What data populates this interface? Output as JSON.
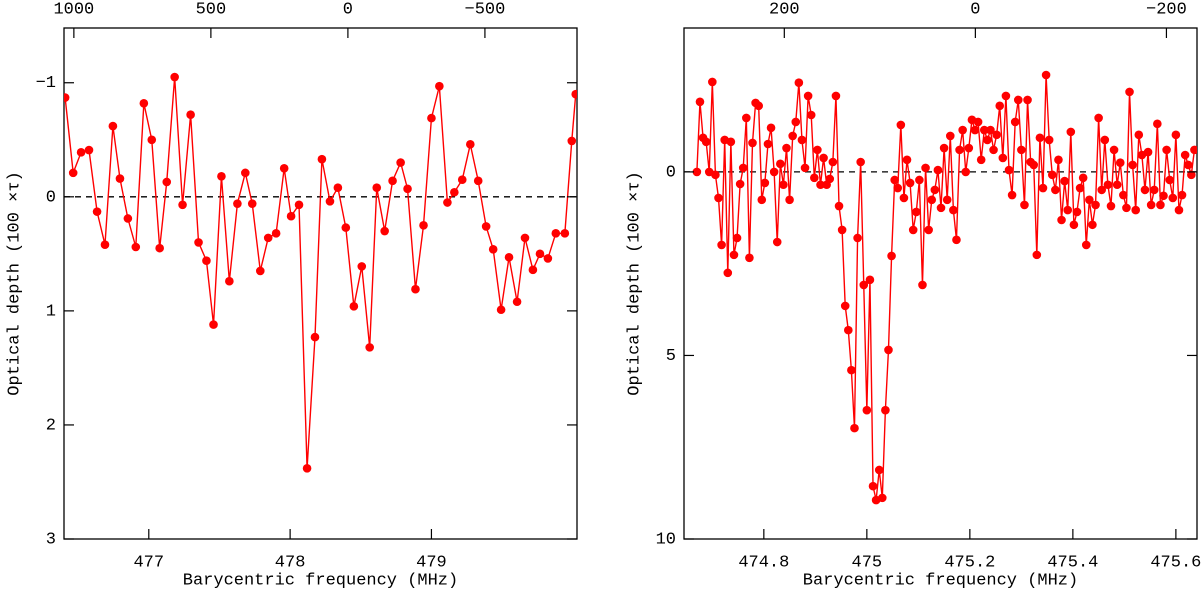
{
  "chart_data": [
    {
      "type": "line",
      "marker": "circle",
      "color": "#ff0000",
      "xlabel": "Barycentric frequency (MHz)",
      "ylabel": "Optical depth (100 ×τ)",
      "xlim": [
        476.4,
        480.03
      ],
      "xticks": [
        477,
        478,
        479
      ],
      "x2lim": [
        1036,
        -836
      ],
      "x2ticks": [
        1000,
        500,
        0,
        {
          "value": -500,
          "label": "−500"
        }
      ],
      "ylim": [
        -1.48,
        3
      ],
      "y_inverted": true,
      "yticks": [
        {
          "value": -1,
          "label": "−1"
        },
        0,
        1,
        2,
        3
      ],
      "hline": 0,
      "x": [
        476.408,
        476.465,
        476.521,
        476.577,
        476.634,
        476.69,
        476.746,
        476.796,
        476.852,
        476.908,
        476.965,
        477.021,
        477.077,
        477.127,
        477.183,
        477.239,
        477.296,
        477.352,
        477.408,
        477.458,
        477.514,
        477.57,
        477.627,
        477.683,
        477.732,
        477.789,
        477.845,
        477.901,
        477.958,
        478.007,
        478.063,
        478.12,
        478.176,
        478.225,
        478.282,
        478.338,
        478.394,
        478.451,
        478.507,
        478.563,
        478.613,
        478.669,
        478.725,
        478.782,
        478.831,
        478.887,
        478.944,
        479.0,
        479.056,
        479.113,
        479.162,
        479.218,
        479.275,
        479.331,
        479.387,
        479.437,
        479.493,
        479.549,
        479.606,
        479.662,
        479.718,
        479.768,
        479.824,
        479.88,
        479.944,
        479.993,
        480.021
      ],
      "values": [
        -0.87,
        -0.21,
        -0.39,
        -0.41,
        0.13,
        0.42,
        -0.62,
        -0.16,
        0.19,
        0.44,
        -0.82,
        -0.5,
        0.45,
        -0.13,
        -1.05,
        0.07,
        -0.72,
        0.4,
        0.56,
        1.12,
        -0.18,
        0.74,
        0.06,
        -0.21,
        0.06,
        0.65,
        0.36,
        0.32,
        -0.25,
        0.17,
        0.07,
        2.38,
        1.23,
        -0.33,
        0.04,
        -0.08,
        0.27,
        0.96,
        0.61,
        1.32,
        -0.08,
        0.3,
        -0.14,
        -0.3,
        -0.07,
        0.81,
        0.25,
        -0.69,
        -0.97,
        0.05,
        -0.04,
        -0.15,
        -0.46,
        -0.14,
        0.26,
        0.46,
        0.99,
        0.53,
        0.92,
        0.36,
        0.64,
        0.5,
        0.54,
        0.32,
        0.32,
        -0.49,
        -0.9
      ]
    },
    {
      "type": "line",
      "marker": "circle",
      "color": "#ff0000",
      "xlabel": "Barycentric frequency (MHz)",
      "ylabel": "Optical depth (100 ×τ)",
      "xlim": [
        474.645,
        475.641
      ],
      "xticks": [
        474.8,
        475,
        475.2,
        475.4,
        475.6
      ],
      "x2lim": [
        305,
        -232
      ],
      "x2ticks": [
        200,
        0,
        {
          "value": -200,
          "label": "−200"
        }
      ],
      "ylim": [
        -3.92,
        10
      ],
      "y_inverted": true,
      "yticks": [
        0,
        5,
        10
      ],
      "hline": 0,
      "x": [
        474.67,
        474.676,
        474.682,
        474.688,
        474.694,
        474.7,
        474.706,
        474.712,
        474.718,
        474.724,
        474.73,
        474.736,
        474.742,
        474.748,
        474.754,
        474.76,
        474.766,
        474.772,
        474.778,
        474.784,
        474.79,
        474.796,
        474.802,
        474.808,
        474.814,
        474.82,
        474.826,
        474.832,
        474.838,
        474.844,
        474.85,
        474.856,
        474.862,
        474.868,
        474.874,
        474.88,
        474.886,
        474.892,
        474.898,
        474.904,
        474.91,
        474.916,
        474.922,
        474.928,
        474.934,
        474.94,
        474.946,
        474.952,
        474.958,
        474.964,
        474.97,
        474.976,
        474.982,
        474.988,
        474.994,
        475.0,
        475.006,
        475.012,
        475.018,
        475.024,
        475.03,
        475.036,
        475.042,
        475.048,
        475.054,
        475.06,
        475.066,
        475.072,
        475.078,
        475.084,
        475.09,
        475.096,
        475.102,
        475.108,
        475.114,
        475.12,
        475.126,
        475.132,
        475.138,
        475.144,
        475.15,
        475.156,
        475.162,
        475.168,
        475.174,
        475.18,
        475.186,
        475.192,
        475.198,
        475.204,
        475.21,
        475.216,
        475.222,
        475.228,
        475.234,
        475.24,
        475.246,
        475.252,
        475.258,
        475.264,
        475.27,
        475.276,
        475.282,
        475.288,
        475.294,
        475.3,
        475.306,
        475.312,
        475.318,
        475.324,
        475.33,
        475.336,
        475.342,
        475.348,
        475.354,
        475.36,
        475.366,
        475.372,
        475.378,
        475.384,
        475.39,
        475.396,
        475.402,
        475.408,
        475.414,
        475.42,
        475.426,
        475.432,
        475.438,
        475.444,
        475.45,
        475.456,
        475.462,
        475.468,
        475.474,
        475.48,
        475.486,
        475.492,
        475.498,
        475.504,
        475.51,
        475.516,
        475.522,
        475.528,
        475.534,
        475.54,
        475.546,
        475.552,
        475.558,
        475.564,
        475.57,
        475.576,
        475.582,
        475.588,
        475.594,
        475.6,
        475.606,
        475.612,
        475.618,
        475.624,
        475.63,
        475.636
      ],
      "values": [
        0.0,
        -1.91,
        -0.93,
        -0.82,
        0.0,
        -2.45,
        0.08,
        0.71,
        1.99,
        -0.87,
        2.75,
        -0.82,
        2.26,
        1.8,
        0.33,
        -0.11,
        -1.47,
        2.34,
        -0.79,
        -1.88,
        -1.8,
        0.76,
        0.3,
        -0.76,
        -1.2,
        0.0,
        1.91,
        -0.22,
        0.35,
        -0.65,
        0.76,
        -0.98,
        -1.36,
        -2.43,
        -0.87,
        -0.11,
        -2.07,
        -1.55,
        0.16,
        -0.6,
        0.35,
        -0.38,
        0.35,
        0.19,
        -0.27,
        -2.07,
        0.93,
        1.58,
        3.65,
        4.31,
        5.4,
        6.98,
        1.8,
        -0.27,
        3.08,
        6.49,
        2.94,
        8.56,
        8.94,
        8.12,
        8.88,
        6.49,
        4.85,
        2.29,
        0.22,
        0.44,
        -1.28,
        0.71,
        -0.33,
        0.3,
        1.58,
        1.09,
        0.22,
        3.08,
        -0.11,
        1.58,
        0.76,
        0.49,
        -0.05,
        0.98,
        -0.65,
        0.76,
        -0.98,
        1.04,
        1.85,
        -0.6,
        -1.14,
        0.0,
        -0.65,
        -1.42,
        -1.14,
        -1.36,
        -0.33,
        -1.14,
        -0.87,
        -1.14,
        -0.6,
        -1.01,
        -1.8,
        -0.38,
        -2.07,
        -0.05,
        0.63,
        -1.36,
        -1.96,
        -0.6,
        0.9,
        -1.96,
        -0.27,
        -0.19,
        2.26,
        -0.93,
        0.44,
        -2.64,
        -0.87,
        0.08,
        0.49,
        -0.33,
        1.31,
        0.25,
        1.04,
        -1.09,
        1.44,
        1.09,
        0.44,
        0.16,
        1.99,
        0.76,
        1.44,
        0.9,
        -1.47,
        0.49,
        -0.87,
        0.35,
        0.93,
        -0.6,
        0.35,
        -0.25,
        0.63,
        0.98,
        -2.18,
        -0.19,
        1.04,
        -1.01,
        -0.46,
        0.49,
        -0.54,
        0.9,
        0.49,
        -1.31,
        0.9,
        0.65,
        -0.6,
        0.22,
        0.71,
        -1.01,
        1.04,
        0.63,
        -0.46,
        -0.19,
        0.08,
        -0.6
      ]
    }
  ]
}
